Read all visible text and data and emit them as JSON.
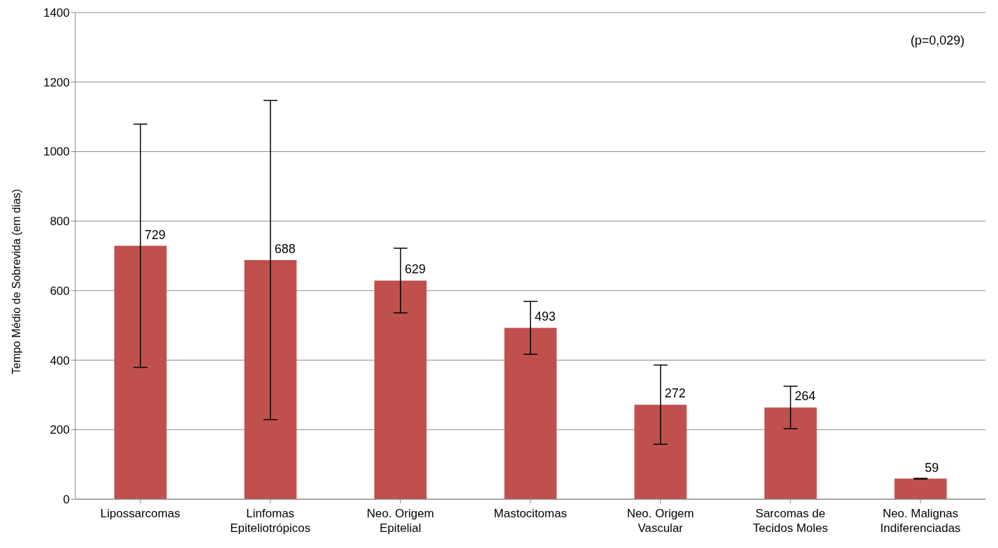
{
  "chart_data": {
    "type": "bar",
    "ylabel": "Tempo Médio de Sobrevida (em dias)",
    "categories": [
      "Lipossarcomas",
      "Linfomas\nEpiteliotrópicos",
      "Neo. Origem\nEpitelial",
      "Mastocitomas",
      "Neo. Origem\nVascular",
      "Sarcomas de\nTecidos Moles",
      "Neo. Malignas\nIndiferenciadas"
    ],
    "values": [
      729,
      688,
      629,
      493,
      272,
      264,
      59
    ],
    "errors": [
      350,
      459,
      93,
      76,
      114,
      61,
      1
    ],
    "color": "#c0504d",
    "ylim": [
      0,
      1400
    ],
    "yticks": [
      0,
      200,
      400,
      600,
      800,
      1000,
      1200,
      1400
    ],
    "grid": "y",
    "data_labels": true,
    "annotations": [
      "(p=0,029)"
    ]
  }
}
